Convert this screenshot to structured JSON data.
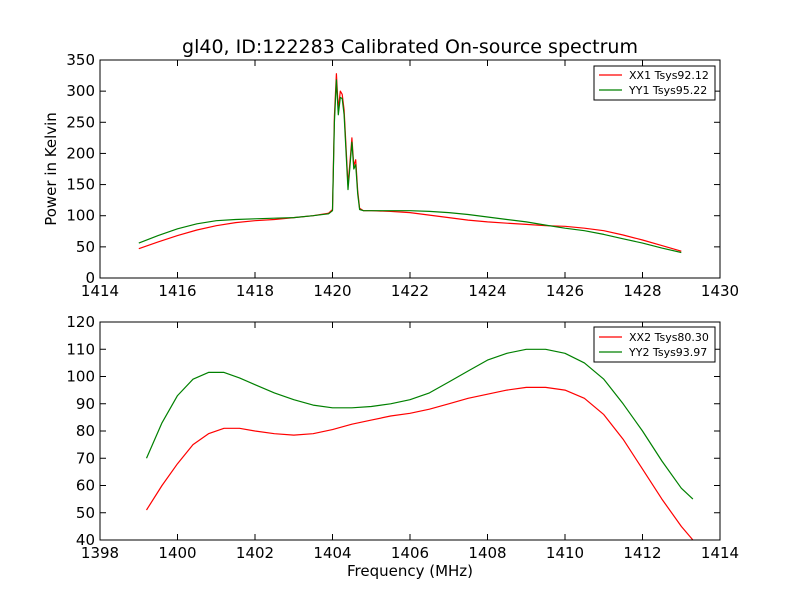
{
  "chart_data": [
    {
      "type": "line",
      "title": "gl40, ID:122283 Calibrated On-source spectrum",
      "xlabel": "",
      "ylabel": "Power in Kelvin",
      "xlim": [
        1414,
        1430
      ],
      "ylim": [
        0,
        350
      ],
      "xticks": [
        1414,
        1416,
        1418,
        1420,
        1422,
        1424,
        1426,
        1428,
        1430
      ],
      "yticks": [
        0,
        50,
        100,
        150,
        200,
        250,
        300,
        350
      ],
      "legend_position": "top-right",
      "series": [
        {
          "name": "XX1 Tsys92.12",
          "color": "#ff0000",
          "x": [
            1415.0,
            1415.5,
            1416.0,
            1416.5,
            1417.0,
            1417.5,
            1418.0,
            1418.5,
            1419.0,
            1419.5,
            1419.9,
            1420.0,
            1420.05,
            1420.1,
            1420.15,
            1420.2,
            1420.25,
            1420.3,
            1420.4,
            1420.45,
            1420.5,
            1420.55,
            1420.6,
            1420.65,
            1420.7,
            1420.8,
            1421.0,
            1421.5,
            1422.0,
            1422.5,
            1423.0,
            1423.5,
            1424.0,
            1424.5,
            1425.0,
            1425.5,
            1426.0,
            1426.5,
            1427.0,
            1427.5,
            1428.0,
            1428.5,
            1429.0
          ],
          "y": [
            47,
            58,
            68,
            77,
            84,
            89,
            92,
            94,
            97,
            100,
            104,
            110,
            260,
            328,
            270,
            300,
            295,
            270,
            150,
            185,
            225,
            180,
            190,
            140,
            112,
            108,
            108,
            107,
            105,
            101,
            97,
            93,
            90,
            88,
            86,
            84,
            83,
            80,
            76,
            69,
            61,
            52,
            43
          ]
        },
        {
          "name": "YY1 Tsys95.22",
          "color": "#008000",
          "x": [
            1415.0,
            1415.5,
            1416.0,
            1416.5,
            1417.0,
            1417.5,
            1418.0,
            1418.5,
            1419.0,
            1419.5,
            1419.9,
            1420.0,
            1420.05,
            1420.1,
            1420.15,
            1420.2,
            1420.25,
            1420.3,
            1420.4,
            1420.45,
            1420.5,
            1420.55,
            1420.6,
            1420.65,
            1420.7,
            1420.8,
            1421.0,
            1421.5,
            1422.0,
            1422.5,
            1423.0,
            1423.5,
            1424.0,
            1424.5,
            1425.0,
            1425.5,
            1426.0,
            1426.5,
            1427.0,
            1427.5,
            1428.0,
            1428.5,
            1429.0
          ],
          "y": [
            56,
            68,
            79,
            87,
            92,
            94,
            95,
            96,
            97,
            100,
            103,
            108,
            250,
            318,
            262,
            290,
            288,
            262,
            142,
            178,
            218,
            175,
            182,
            135,
            110,
            108,
            108,
            108,
            108,
            107,
            105,
            102,
            98,
            94,
            90,
            85,
            80,
            76,
            70,
            63,
            56,
            48,
            41
          ]
        }
      ]
    },
    {
      "type": "line",
      "title": "",
      "xlabel": "Frequency (MHz)",
      "ylabel": "",
      "xlim": [
        1398,
        1414
      ],
      "ylim": [
        40,
        120
      ],
      "xticks": [
        1398,
        1400,
        1402,
        1404,
        1406,
        1408,
        1410,
        1412,
        1414
      ],
      "yticks": [
        40,
        50,
        60,
        70,
        80,
        90,
        100,
        110,
        120
      ],
      "legend_position": "top-right",
      "series": [
        {
          "name": "XX2 Tsys80.30",
          "color": "#ff0000",
          "x": [
            1399.2,
            1399.6,
            1400.0,
            1400.4,
            1400.8,
            1401.2,
            1401.6,
            1402.0,
            1402.5,
            1403.0,
            1403.5,
            1404.0,
            1404.5,
            1405.0,
            1405.5,
            1406.0,
            1406.5,
            1407.0,
            1407.5,
            1408.0,
            1408.5,
            1409.0,
            1409.5,
            1410.0,
            1410.5,
            1411.0,
            1411.5,
            1412.0,
            1412.5,
            1413.0,
            1413.3
          ],
          "y": [
            51,
            60,
            68,
            75,
            79,
            81,
            81,
            80,
            79,
            78.5,
            79,
            80.5,
            82.5,
            84,
            85.5,
            86.5,
            88,
            90,
            92,
            93.5,
            95,
            96,
            96,
            95,
            92,
            86,
            77,
            66,
            55,
            45,
            40
          ]
        },
        {
          "name": "YY2 Tsys93.97",
          "color": "#008000",
          "x": [
            1399.2,
            1399.6,
            1400.0,
            1400.4,
            1400.8,
            1401.2,
            1401.6,
            1402.0,
            1402.5,
            1403.0,
            1403.5,
            1404.0,
            1404.5,
            1405.0,
            1405.5,
            1406.0,
            1406.5,
            1407.0,
            1407.5,
            1408.0,
            1408.5,
            1409.0,
            1409.5,
            1410.0,
            1410.5,
            1411.0,
            1411.5,
            1412.0,
            1412.5,
            1413.0,
            1413.3
          ],
          "y": [
            70,
            83,
            93,
            99,
            101.5,
            101.5,
            99.5,
            97,
            94,
            91.5,
            89.5,
            88.5,
            88.5,
            89,
            90,
            91.5,
            94,
            98,
            102,
            106,
            108.5,
            110,
            110,
            108.5,
            105,
            99,
            90,
            80,
            69,
            59,
            55
          ]
        }
      ]
    }
  ]
}
